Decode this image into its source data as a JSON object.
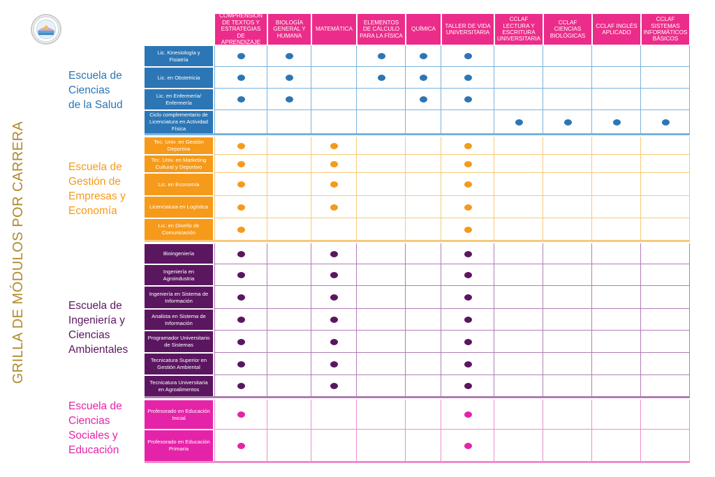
{
  "title": "GRILLA DE MÓDULOS POR CARRERA",
  "logo": "university-seal-icon",
  "columns": [
    "COMPRENSIÓN DE TEXTOS Y ESTRATEGIAS DE APRENDIZAJE",
    "BIOLOGÍA GENERAL Y HUMANA",
    "MATEMÁTICA",
    "ELEMENTOS DE CÁLCULO PARA LA FÍSICA",
    "QUÍMICA",
    "TALLER DE VIDA UNIVERSITARIA",
    "CCLAF LECTURA Y ESCRITURA UNIVERSITARIA",
    "CCLAF CIENCIAS BIOLÓGICAS",
    "CCLAF INGLÉS APLICADO",
    "CCLAF SISTEMAS INFORMÁTICOS BÁSICOS"
  ],
  "schools": [
    {
      "name": "Escuela de Ciencias de la Salud",
      "lines": [
        "Escuela de",
        "Ciencias",
        "de la Salud"
      ],
      "color": "#2c76b5",
      "line_color": "#7ab2dc",
      "careers": [
        {
          "name": "Lic. Kinesiología y Fisiatría",
          "modules": [
            0,
            1,
            3,
            4,
            5
          ]
        },
        {
          "name": "Lic. en Obstetricia",
          "modules": [
            0,
            1,
            3,
            4,
            5
          ]
        },
        {
          "name": "Lic. en Enfermería/ Enfermería",
          "modules": [
            0,
            1,
            4,
            5
          ]
        },
        {
          "name": "Ciclo complementario de Licenciatura en Actividad Física",
          "modules": [
            6,
            7,
            8,
            9
          ]
        }
      ]
    },
    {
      "name": "Escuela de Gestión de Empresas y Economía",
      "lines": [
        "Escuela de",
        "Gestión de",
        "Empresas y",
        "Economía"
      ],
      "color": "#f59a1b",
      "line_color": "#f7c979",
      "careers": [
        {
          "name": "Tec. Univ. en Gestión Deportiva",
          "modules": [
            0,
            2,
            5
          ]
        },
        {
          "name": "Tec. Univ. en Marketing Cultural y Deportivo",
          "modules": [
            0,
            2,
            5
          ]
        },
        {
          "name": "Lic. en Economía",
          "modules": [
            0,
            2,
            5
          ]
        },
        {
          "name": "Licenciatura en Logística",
          "modules": [
            0,
            2,
            5
          ]
        },
        {
          "name": "Lic. en Diseño de Comunicación",
          "modules": [
            0,
            5
          ]
        }
      ]
    },
    {
      "name": "Escuela de Ingeniería y Ciencias Ambientales",
      "lines": [
        "Escuela de",
        "Ingeniería y",
        "Ciencias",
        "Ambientales"
      ],
      "color": "#5b1660",
      "line_color": "#b07db4",
      "careers": [
        {
          "name": "Bioingeniería",
          "modules": [
            0,
            2,
            5
          ]
        },
        {
          "name": "Ingeniería en Agroindustria",
          "modules": [
            0,
            2,
            5
          ]
        },
        {
          "name": "Ingeniería en Sistema de Información",
          "modules": [
            0,
            2,
            5
          ]
        },
        {
          "name": "Analista en Sistema de Información",
          "modules": [
            0,
            2,
            5
          ]
        },
        {
          "name": "Programador Universitario de Sistemas",
          "modules": [
            0,
            2,
            5
          ]
        },
        {
          "name": "Tecnicatura Superior en Gestión Ambiental",
          "modules": [
            0,
            2,
            5
          ]
        },
        {
          "name": "Tecnicatura Universitaria en Agroalimentos",
          "modules": [
            0,
            2,
            5
          ]
        }
      ]
    },
    {
      "name": "Escuela de Ciencias Sociales y Educación",
      "lines": [
        "Escuela de",
        "Ciencias",
        "Sociales y",
        "Educación"
      ],
      "color": "#e523a8",
      "line_color": "#ee8ccc",
      "careers": [
        {
          "name": "Profesorado en Educación Inicial",
          "modules": [
            0,
            5
          ]
        },
        {
          "name": "Profesorado en Educación Primaria",
          "modules": [
            0,
            5
          ]
        }
      ]
    }
  ]
}
